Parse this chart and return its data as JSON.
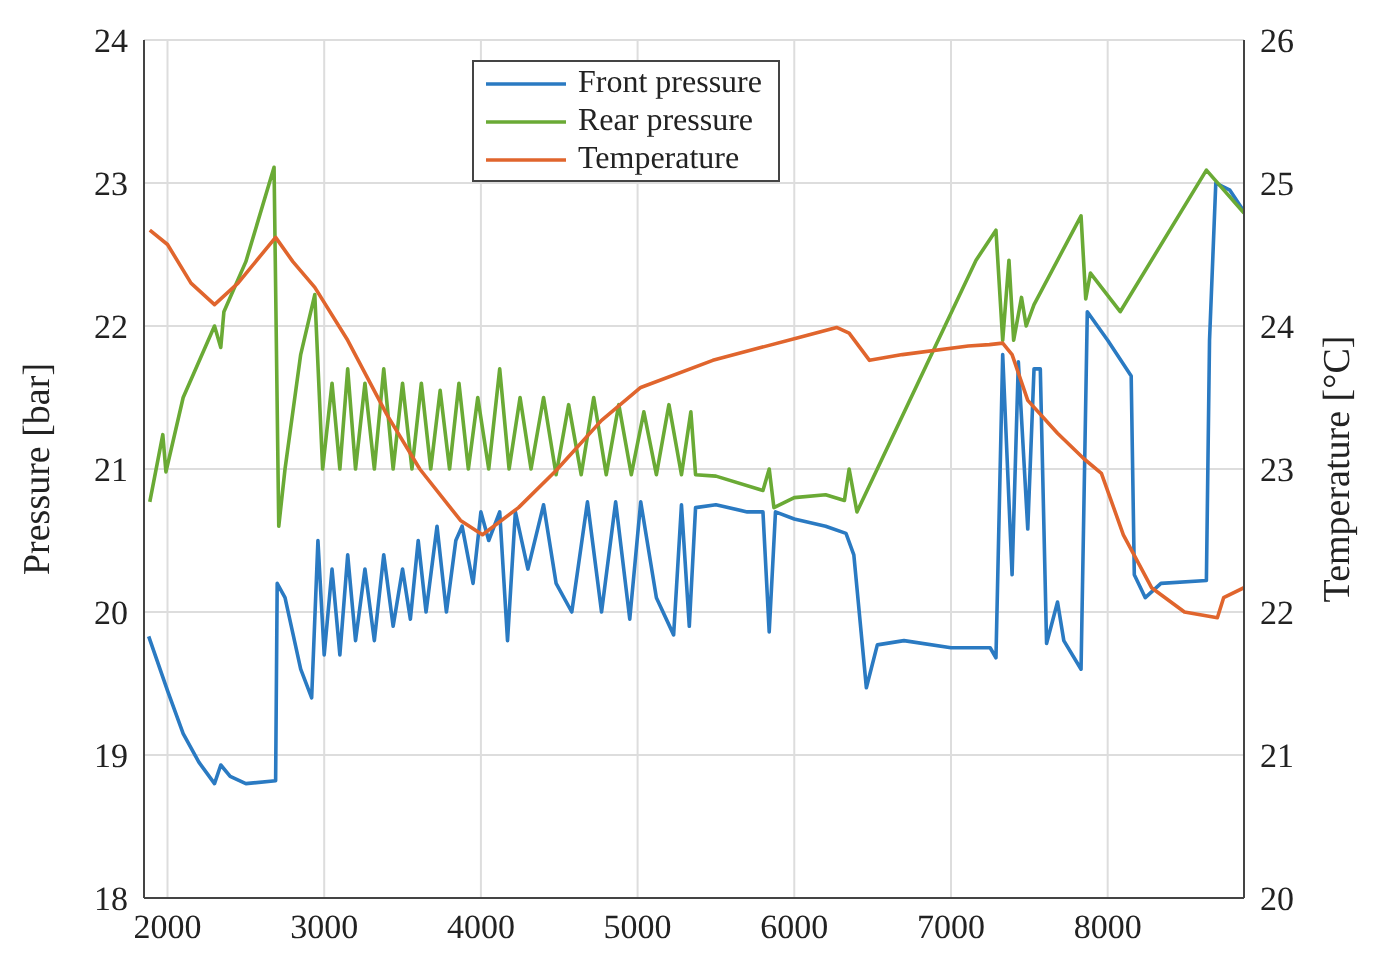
{
  "chart_data": {
    "type": "line",
    "xlim": [
      1850,
      8870
    ],
    "xticks": [
      2000,
      3000,
      4000,
      5000,
      6000,
      7000,
      8000
    ],
    "ylim": [
      18,
      24
    ],
    "yticks": [
      18,
      19,
      20,
      21,
      22,
      23,
      24
    ],
    "y2lim": [
      20,
      26
    ],
    "y2ticks": [
      20,
      21,
      22,
      23,
      24,
      25,
      26
    ],
    "ylabel": "Pressure [bar]",
    "y2label": "Temperature [°C]",
    "grid": true,
    "legend": "top",
    "marker": "none",
    "line_style": "solid",
    "series": [
      {
        "name": "Front pressure",
        "color": "#2a7ac2",
        "x": [
          1880,
          2000,
          2100,
          2200,
          2300,
          2340,
          2400,
          2500,
          2690,
          2700,
          2750,
          2800,
          2850,
          2920,
          2960,
          3000,
          3050,
          3100,
          3150,
          3200,
          3260,
          3320,
          3380,
          3440,
          3500,
          3550,
          3600,
          3650,
          3720,
          3780,
          3840,
          3880,
          3950,
          4000,
          4050,
          4120,
          4170,
          4220,
          4300,
          4400,
          4480,
          4580,
          4680,
          4770,
          4860,
          4950,
          5020,
          5120,
          5230,
          5280,
          5330,
          5370,
          5500,
          5700,
          5800,
          5840,
          5880,
          6000,
          6200,
          6330,
          6380,
          6460,
          6530,
          6700,
          7000,
          7250,
          7287,
          7330,
          7390,
          7430,
          7490,
          7530,
          7570,
          7610,
          7680,
          7720,
          7830,
          7870,
          8000,
          8150,
          8170,
          8240,
          8340,
          8630,
          8650,
          8690,
          8780,
          8870
        ],
        "values": [
          19.83,
          19.45,
          19.15,
          18.95,
          18.8,
          18.93,
          18.85,
          18.8,
          18.82,
          20.2,
          20.1,
          19.85,
          19.6,
          19.4,
          20.5,
          19.7,
          20.3,
          19.7,
          20.4,
          19.8,
          20.3,
          19.8,
          20.4,
          19.9,
          20.3,
          19.95,
          20.5,
          20.0,
          20.6,
          20.0,
          20.5,
          20.6,
          20.2,
          20.7,
          20.5,
          20.7,
          19.8,
          20.7,
          20.3,
          20.75,
          20.2,
          20.0,
          20.77,
          20.0,
          20.77,
          19.95,
          20.77,
          20.1,
          19.84,
          20.75,
          19.9,
          20.73,
          20.75,
          20.7,
          20.7,
          19.86,
          20.7,
          20.65,
          20.6,
          20.55,
          20.4,
          19.47,
          19.77,
          19.8,
          19.75,
          19.75,
          19.68,
          21.8,
          20.26,
          21.75,
          20.58,
          21.7,
          21.7,
          19.78,
          20.07,
          19.8,
          19.6,
          22.1,
          21.9,
          21.65,
          20.26,
          20.1,
          20.2,
          20.22,
          21.9,
          23.0,
          22.95,
          22.8
        ]
      },
      {
        "name": "Rear pressure",
        "color": "#6aaa35",
        "x": [
          1887,
          1970,
          1990,
          2100,
          2200,
          2300,
          2340,
          2360,
          2500,
          2680,
          2710,
          2750,
          2850,
          2940,
          2990,
          3050,
          3100,
          3150,
          3200,
          3260,
          3320,
          3380,
          3440,
          3500,
          3560,
          3620,
          3680,
          3740,
          3800,
          3860,
          3920,
          3980,
          4050,
          4120,
          4180,
          4250,
          4320,
          4400,
          4480,
          4560,
          4640,
          4720,
          4800,
          4880,
          4960,
          5040,
          5120,
          5200,
          5280,
          5340,
          5370,
          5500,
          5800,
          5840,
          5870,
          6000,
          6200,
          6320,
          6350,
          6400,
          7160,
          7287,
          7330,
          7370,
          7400,
          7450,
          7480,
          7530,
          7830,
          7860,
          7890,
          8080,
          8630,
          8870
        ],
        "values": [
          20.77,
          21.24,
          20.98,
          21.5,
          21.75,
          22.0,
          21.85,
          22.1,
          22.45,
          23.11,
          20.6,
          21.0,
          21.8,
          22.22,
          21.0,
          21.6,
          21.0,
          21.7,
          21.0,
          21.6,
          21.0,
          21.7,
          21.0,
          21.6,
          21.0,
          21.6,
          21.0,
          21.55,
          21.0,
          21.6,
          21.0,
          21.5,
          21.0,
          21.7,
          21.0,
          21.5,
          21.0,
          21.5,
          20.96,
          21.45,
          20.96,
          21.5,
          20.96,
          21.45,
          20.96,
          21.4,
          20.96,
          21.45,
          20.96,
          21.4,
          20.96,
          20.95,
          20.85,
          21.0,
          20.73,
          20.8,
          20.82,
          20.78,
          21.0,
          20.7,
          22.46,
          22.67,
          21.9,
          22.46,
          21.9,
          22.2,
          22.0,
          22.15,
          22.77,
          22.19,
          22.37,
          22.1,
          23.09,
          22.79
        ]
      },
      {
        "name": "Temperature",
        "color": "#e0652d",
        "axis": "y2",
        "x": [
          1887,
          2000,
          2150,
          2300,
          2450,
          2690,
          2800,
          2940,
          3150,
          3400,
          3610,
          3870,
          4010,
          4240,
          4480,
          4770,
          5020,
          5480,
          6030,
          6270,
          6350,
          6480,
          6690,
          7110,
          7245,
          7330,
          7390,
          7490,
          7680,
          7850,
          7960,
          8100,
          8280,
          8490,
          8700,
          8740,
          8870
        ],
        "values": [
          24.67,
          24.57,
          24.3,
          24.15,
          24.3,
          24.62,
          24.45,
          24.27,
          23.9,
          23.38,
          23.0,
          22.64,
          22.54,
          22.73,
          22.99,
          23.34,
          23.57,
          23.76,
          23.92,
          23.99,
          23.95,
          23.76,
          23.8,
          23.86,
          23.87,
          23.88,
          23.8,
          23.48,
          23.25,
          23.07,
          22.97,
          22.54,
          22.17,
          22.0,
          21.96,
          22.1,
          22.17
        ]
      }
    ]
  }
}
